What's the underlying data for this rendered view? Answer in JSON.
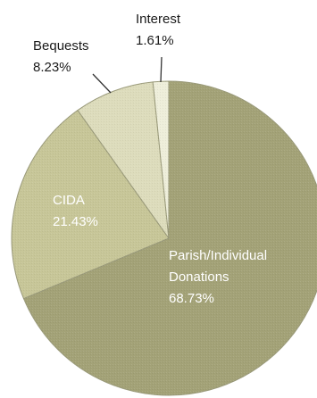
{
  "chart_data": {
    "type": "pie",
    "title": "",
    "legend": "none",
    "slices": [
      {
        "label_lines": [
          "Parish/Individual",
          "Donations"
        ],
        "percent_text": "68.73%",
        "value": 68.73,
        "color": "#a3a277"
      },
      {
        "label_lines": [
          "CIDA"
        ],
        "percent_text": "21.43%",
        "value": 21.43,
        "color": "#c7c698"
      },
      {
        "label_lines": [
          "Bequests"
        ],
        "percent_text": "8.23%",
        "value": 8.23,
        "color": "#dddcbc"
      },
      {
        "label_lines": [
          "Interest"
        ],
        "percent_text": "1.61%",
        "value": 1.61,
        "color": "#eeeeda"
      }
    ]
  }
}
